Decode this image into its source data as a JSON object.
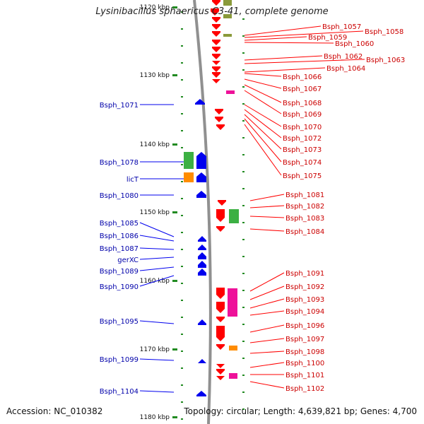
{
  "title": "Lysinibacillus sphaericus C3-41, complete genome",
  "accession": "Accession: NC_010382",
  "topology": "Topology: circular; Length: 4,639,821 bp; Genes: 4,700",
  "colors": {
    "backbone": "#909090",
    "tick": "#228B22",
    "forward_gene": "#0000ee",
    "reverse_gene": "#ff0000",
    "label_left": "#0000aa",
    "label_right": "#cc0000",
    "green_feature": "#3cb043",
    "orange_feature": "#ff8c00",
    "magenta_feature": "#ee1199",
    "olive_feature": "#8a9a3a"
  },
  "axis": {
    "ticks": [
      "1120 kbp",
      "1130 kbp",
      "1140 kbp",
      "1150 kbp",
      "1160 kbp",
      "1170 kbp",
      "1180 kbp"
    ]
  },
  "left_labels": [
    "Bsph_1071",
    "Bsph_1078",
    "licT",
    "Bsph_1080",
    "Bsph_1085",
    "Bsph_1086",
    "Bsph_1087",
    "gerXC",
    "Bsph_1089",
    "Bsph_1090",
    "Bsph_1095",
    "Bsph_1099",
    "Bsph_1104"
  ],
  "right_labels": [
    "Bsph_1057",
    "Bsph_1058",
    "Bsph_1059",
    "Bsph_1060",
    "Bsph_1062",
    "Bsph_1063",
    "Bsph_1064",
    "Bsph_1066",
    "Bsph_1067",
    "Bsph_1068",
    "Bsph_1069",
    "Bsph_1070",
    "Bsph_1072",
    "Bsph_1073",
    "Bsph_1074",
    "Bsph_1075",
    "Bsph_1081",
    "Bsph_1082",
    "Bsph_1083",
    "Bsph_1084",
    "Bsph_1091",
    "Bsph_1092",
    "Bsph_1093",
    "Bsph_1094",
    "Bsph_1096",
    "Bsph_1097",
    "Bsph_1098",
    "Bsph_1100",
    "Bsph_1101",
    "Bsph_1102"
  ]
}
